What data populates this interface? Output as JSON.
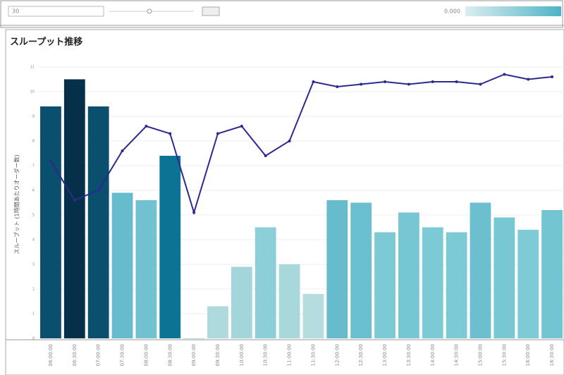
{
  "controls": {
    "filter_value": "30",
    "legend_label": "0.000"
  },
  "chart_data": {
    "type": "bar-line",
    "title": "スループット推移",
    "y_label": "スループット (1時間あたりオーダー数)",
    "categories": [
      "06:00:00",
      "06:30:00",
      "07:00:00",
      "07:30:00",
      "08:00:00",
      "08:30:00",
      "09:00:00",
      "09:30:00",
      "10:00:00",
      "10:30:00",
      "11:00:00",
      "11:30:00",
      "12:00:00",
      "12:30:00",
      "13:00:00",
      "13:30:00",
      "14:00:00",
      "14:30:00",
      "15:00:00",
      "15:30:00",
      "16:00:00",
      "16:30:00"
    ],
    "series": [
      {
        "kind": "bar",
        "colors": [
          "#0a4f6e",
          "#06304a",
          "#0a4f6e",
          "#66bccd",
          "#70c2d0",
          "#0d7394",
          "#b8dfe3",
          "#aed9dd",
          "#a4d5da",
          "#8dcfd8",
          "#a8d7dc",
          "#b5dcdf",
          "#66bccd",
          "#6bbfcf",
          "#7ccad5",
          "#76c6d3",
          "#7ccad5",
          "#7ccad5",
          "#6bbfcf",
          "#78c8d4",
          "#7ecbd6",
          "#74c5d2"
        ],
        "values": [
          9.4,
          10.5,
          9.4,
          5.9,
          5.6,
          7.4,
          0,
          1.3,
          2.9,
          4.5,
          3.0,
          1.8,
          5.6,
          5.5,
          4.3,
          5.1,
          4.5,
          4.3,
          5.5,
          4.9,
          4.4,
          5.2
        ]
      },
      {
        "kind": "line",
        "color": "#2b2a8f",
        "values": [
          7.2,
          5.6,
          6.0,
          7.6,
          8.6,
          8.3,
          5.1,
          8.3,
          8.6,
          7.4,
          8.0,
          10.4,
          10.2,
          10.3,
          10.4,
          10.3,
          10.4,
          10.4,
          10.3,
          10.7,
          10.5,
          10.6
        ]
      }
    ],
    "ylim": [
      0,
      11
    ],
    "yticks": [
      0,
      1,
      2,
      3,
      4,
      5,
      6,
      7,
      8,
      9,
      10,
      11
    ],
    "grid": true
  }
}
